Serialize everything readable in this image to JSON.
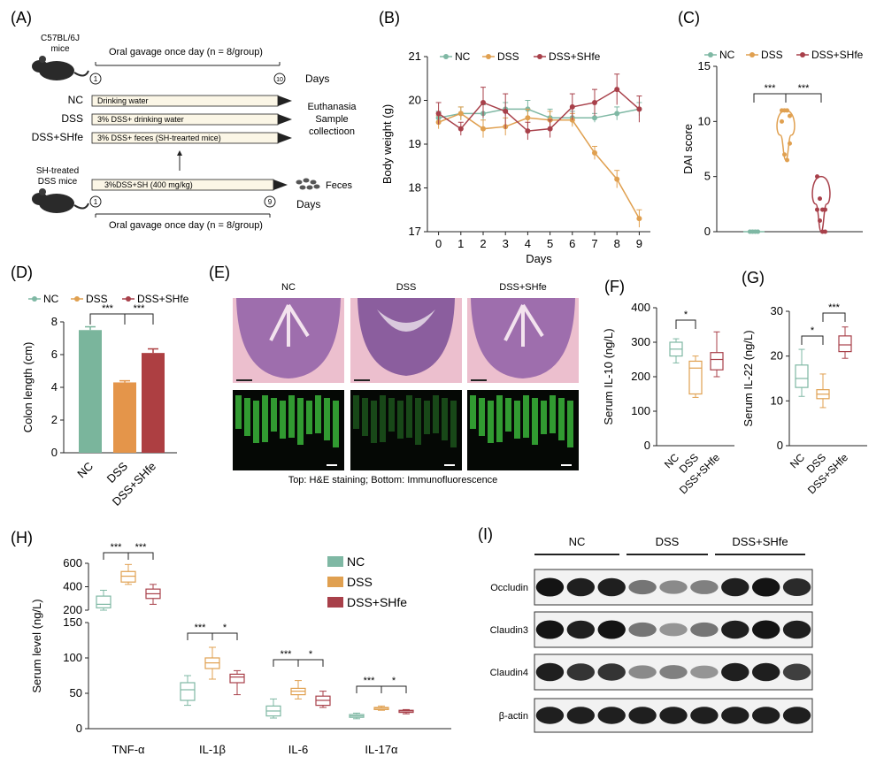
{
  "panel_letters": {
    "A": "(A)",
    "B": "(B)",
    "C": "(C)",
    "D": "(D)",
    "E": "(E)",
    "F": "(F)",
    "G": "(G)",
    "H": "(H)",
    "I": "(I)"
  },
  "colors": {
    "NC": "#7fb8a4",
    "DSS": "#e0a050",
    "DSSSHfe": "#a8404a",
    "NC_bar": "#7ab59c",
    "DSS_bar": "#e4954a",
    "SHfe_bar": "#ad3f42"
  },
  "schematic": {
    "mouse_label_1": "C57BL/6J",
    "mouse_label_2": "mice",
    "top_gavage": "Oral gavage once day (n = 8/group)",
    "day_start": "1",
    "day_end": "10",
    "days": "Days",
    "rows": [
      {
        "group": "NC",
        "treatment": "Drinking water"
      },
      {
        "group": "DSS",
        "treatment": "3% DSS+ drinking water"
      },
      {
        "group": "DSS+SHfe",
        "treatment": "3% DSS+ feces (SH-trearted mice)"
      }
    ],
    "euthanasia_1": "Euthanasia",
    "euthanasia_2": "Sample",
    "euthanasia_3": "collectioon",
    "sh_label_1": "SH-treated",
    "sh_label_2": "DSS mice",
    "sh_treatment": "3%DSS+SH (400 mg/kg)",
    "feces": "Feces",
    "sh_day_start": "1",
    "sh_day_end": "9",
    "bottom_gavage": "Oral gavage once day (n = 8/group)"
  },
  "chart_data": [
    {
      "panel": "B",
      "type": "line",
      "xlabel": "Days",
      "ylabel": "Body weight (g)",
      "x": [
        0,
        1,
        2,
        3,
        4,
        5,
        6,
        7,
        8,
        9
      ],
      "ylim": [
        17,
        21
      ],
      "yticks": [
        17,
        18,
        19,
        20,
        21
      ],
      "legend": [
        "NC",
        "DSS",
        "DSS+SHfe"
      ],
      "series": [
        {
          "name": "NC",
          "values": [
            19.6,
            19.7,
            19.7,
            19.8,
            19.8,
            19.6,
            19.6,
            19.6,
            19.7,
            19.8
          ],
          "errors": [
            0.15,
            0.15,
            0.2,
            0.15,
            0.2,
            0.2,
            0.15,
            0.1,
            0.15,
            0.15
          ]
        },
        {
          "name": "DSS",
          "values": [
            19.5,
            19.7,
            19.35,
            19.4,
            19.6,
            19.55,
            19.55,
            18.8,
            18.2,
            17.3
          ],
          "errors": [
            0.15,
            0.15,
            0.2,
            0.2,
            0.2,
            0.2,
            0.15,
            0.15,
            0.2,
            0.2
          ]
        },
        {
          "name": "DSS+SHfe",
          "values": [
            19.7,
            19.35,
            19.95,
            19.75,
            19.3,
            19.35,
            19.85,
            19.95,
            20.25,
            19.8
          ],
          "errors": [
            0.25,
            0.15,
            0.35,
            0.4,
            0.2,
            0.2,
            0.3,
            0.3,
            0.35,
            0.3
          ]
        }
      ]
    },
    {
      "panel": "C",
      "type": "scatter",
      "ylabel": "DAI score",
      "ylim": [
        0,
        15
      ],
      "yticks": [
        0,
        5,
        10,
        15
      ],
      "legend": [
        "NC",
        "DSS",
        "DSS+SHfe"
      ],
      "series": [
        {
          "name": "NC",
          "values": [
            0,
            0,
            0,
            0,
            0,
            0,
            0,
            0
          ]
        },
        {
          "name": "DSS",
          "values": [
            11,
            11,
            11,
            10.5,
            10,
            7,
            6.5,
            8
          ]
        },
        {
          "name": "DSS+SHfe",
          "values": [
            5,
            3,
            2,
            2,
            2,
            1,
            0,
            0
          ]
        }
      ],
      "significance": [
        "***",
        "***"
      ]
    },
    {
      "panel": "D",
      "type": "bar",
      "ylabel": "Colon length (cm)",
      "categories": [
        "NC",
        "DSS",
        "DSS+SHfe"
      ],
      "values": [
        7.5,
        4.3,
        6.1
      ],
      "errors": [
        0.2,
        0.1,
        0.25
      ],
      "ylim": [
        0,
        8
      ],
      "yticks": [
        0,
        2,
        4,
        6,
        8
      ],
      "legend": [
        "NC",
        "DSS",
        "DSS+SHfe"
      ],
      "significance": [
        "***",
        "***"
      ]
    },
    {
      "panel": "F",
      "type": "box",
      "ylabel": "Serum IL-10 (ng/L)",
      "categories": [
        "NC",
        "DSS",
        "DSS+SHfe"
      ],
      "boxes": [
        [
          240,
          260,
          280,
          300,
          310
        ],
        [
          140,
          150,
          225,
          245,
          260
        ],
        [
          200,
          220,
          250,
          270,
          330
        ]
      ],
      "ylim": [
        0,
        400
      ],
      "yticks": [
        0,
        100,
        200,
        300,
        400
      ],
      "significance": [
        "*"
      ]
    },
    {
      "panel": "G",
      "type": "box",
      "ylabel": "Serum IL-22 (ng/L)",
      "categories": [
        "NC",
        "DSS",
        "DSS+SHfe"
      ],
      "boxes": [
        [
          11,
          13,
          15,
          18,
          21.5
        ],
        [
          8.5,
          10.5,
          11.5,
          12.5,
          16
        ],
        [
          19.5,
          21,
          22.5,
          24.5,
          26.5
        ]
      ],
      "ylim": [
        0,
        30
      ],
      "yticks": [
        0,
        10,
        20,
        30
      ],
      "significance": [
        "*",
        "***"
      ]
    },
    {
      "panel": "H",
      "type": "box",
      "ylabel": "Serum level (ng/L)",
      "categories": [
        "TNF-α",
        "IL-1β",
        "IL-6",
        "IL-17α"
      ],
      "legend": [
        "NC",
        "DSS",
        "DSS+SHfe"
      ],
      "upper_axis": {
        "yticks": [
          200,
          400,
          600
        ],
        "ylim": [
          200,
          600
        ]
      },
      "lower_axis": {
        "yticks": [
          0,
          50,
          100,
          150
        ],
        "ylim": [
          0,
          150
        ]
      },
      "series": [
        {
          "name": "NC",
          "boxes": [
            [
              200,
              220,
              250,
              320,
              370
            ],
            [
              33,
              40,
              55,
              65,
              75
            ],
            [
              15,
              18,
              25,
              32,
              42
            ],
            [
              14,
              16,
              18,
              20,
              22
            ]
          ]
        },
        {
          "name": "DSS",
          "boxes": [
            [
              420,
              440,
              490,
              530,
              590
            ],
            [
              70,
              85,
              93,
              100,
              115
            ],
            [
              42,
              48,
              53,
              57,
              68
            ],
            [
              26,
              27,
              29,
              30,
              32
            ]
          ]
        },
        {
          "name": "DSS+SHfe",
          "boxes": [
            [
              250,
              300,
              340,
              380,
              420
            ],
            [
              48,
              65,
              73,
              77,
              82
            ],
            [
              30,
              33,
              40,
              46,
              53
            ],
            [
              21,
              23,
              25,
              26,
              27
            ]
          ]
        }
      ],
      "significance": [
        [
          "***",
          "***"
        ],
        [
          "***",
          "*"
        ],
        [
          "***",
          "*"
        ],
        [
          "***",
          "*"
        ]
      ]
    }
  ],
  "histology": {
    "columns": [
      "NC",
      "DSS",
      "DSS+SHfe"
    ],
    "caption": "Top: H&E staining; Bottom: Immunofluorescence"
  },
  "western": {
    "groups": [
      "NC",
      "DSS",
      "DSS+SHfe"
    ],
    "rows": [
      {
        "label": "Occludin",
        "intensity": [
          1,
          0.95,
          0.95,
          0.55,
          0.45,
          0.5,
          0.95,
          1,
          0.9
        ]
      },
      {
        "label": "Claudin3",
        "intensity": [
          1,
          0.95,
          1,
          0.55,
          0.4,
          0.55,
          0.95,
          1,
          0.95
        ]
      },
      {
        "label": "Claudin4",
        "intensity": [
          0.95,
          0.85,
          0.85,
          0.45,
          0.5,
          0.4,
          0.95,
          0.95,
          0.8
        ]
      },
      {
        "label": "β-actin",
        "intensity": [
          0.95,
          0.95,
          0.95,
          0.95,
          0.95,
          0.95,
          0.95,
          0.95,
          0.95
        ]
      }
    ]
  }
}
